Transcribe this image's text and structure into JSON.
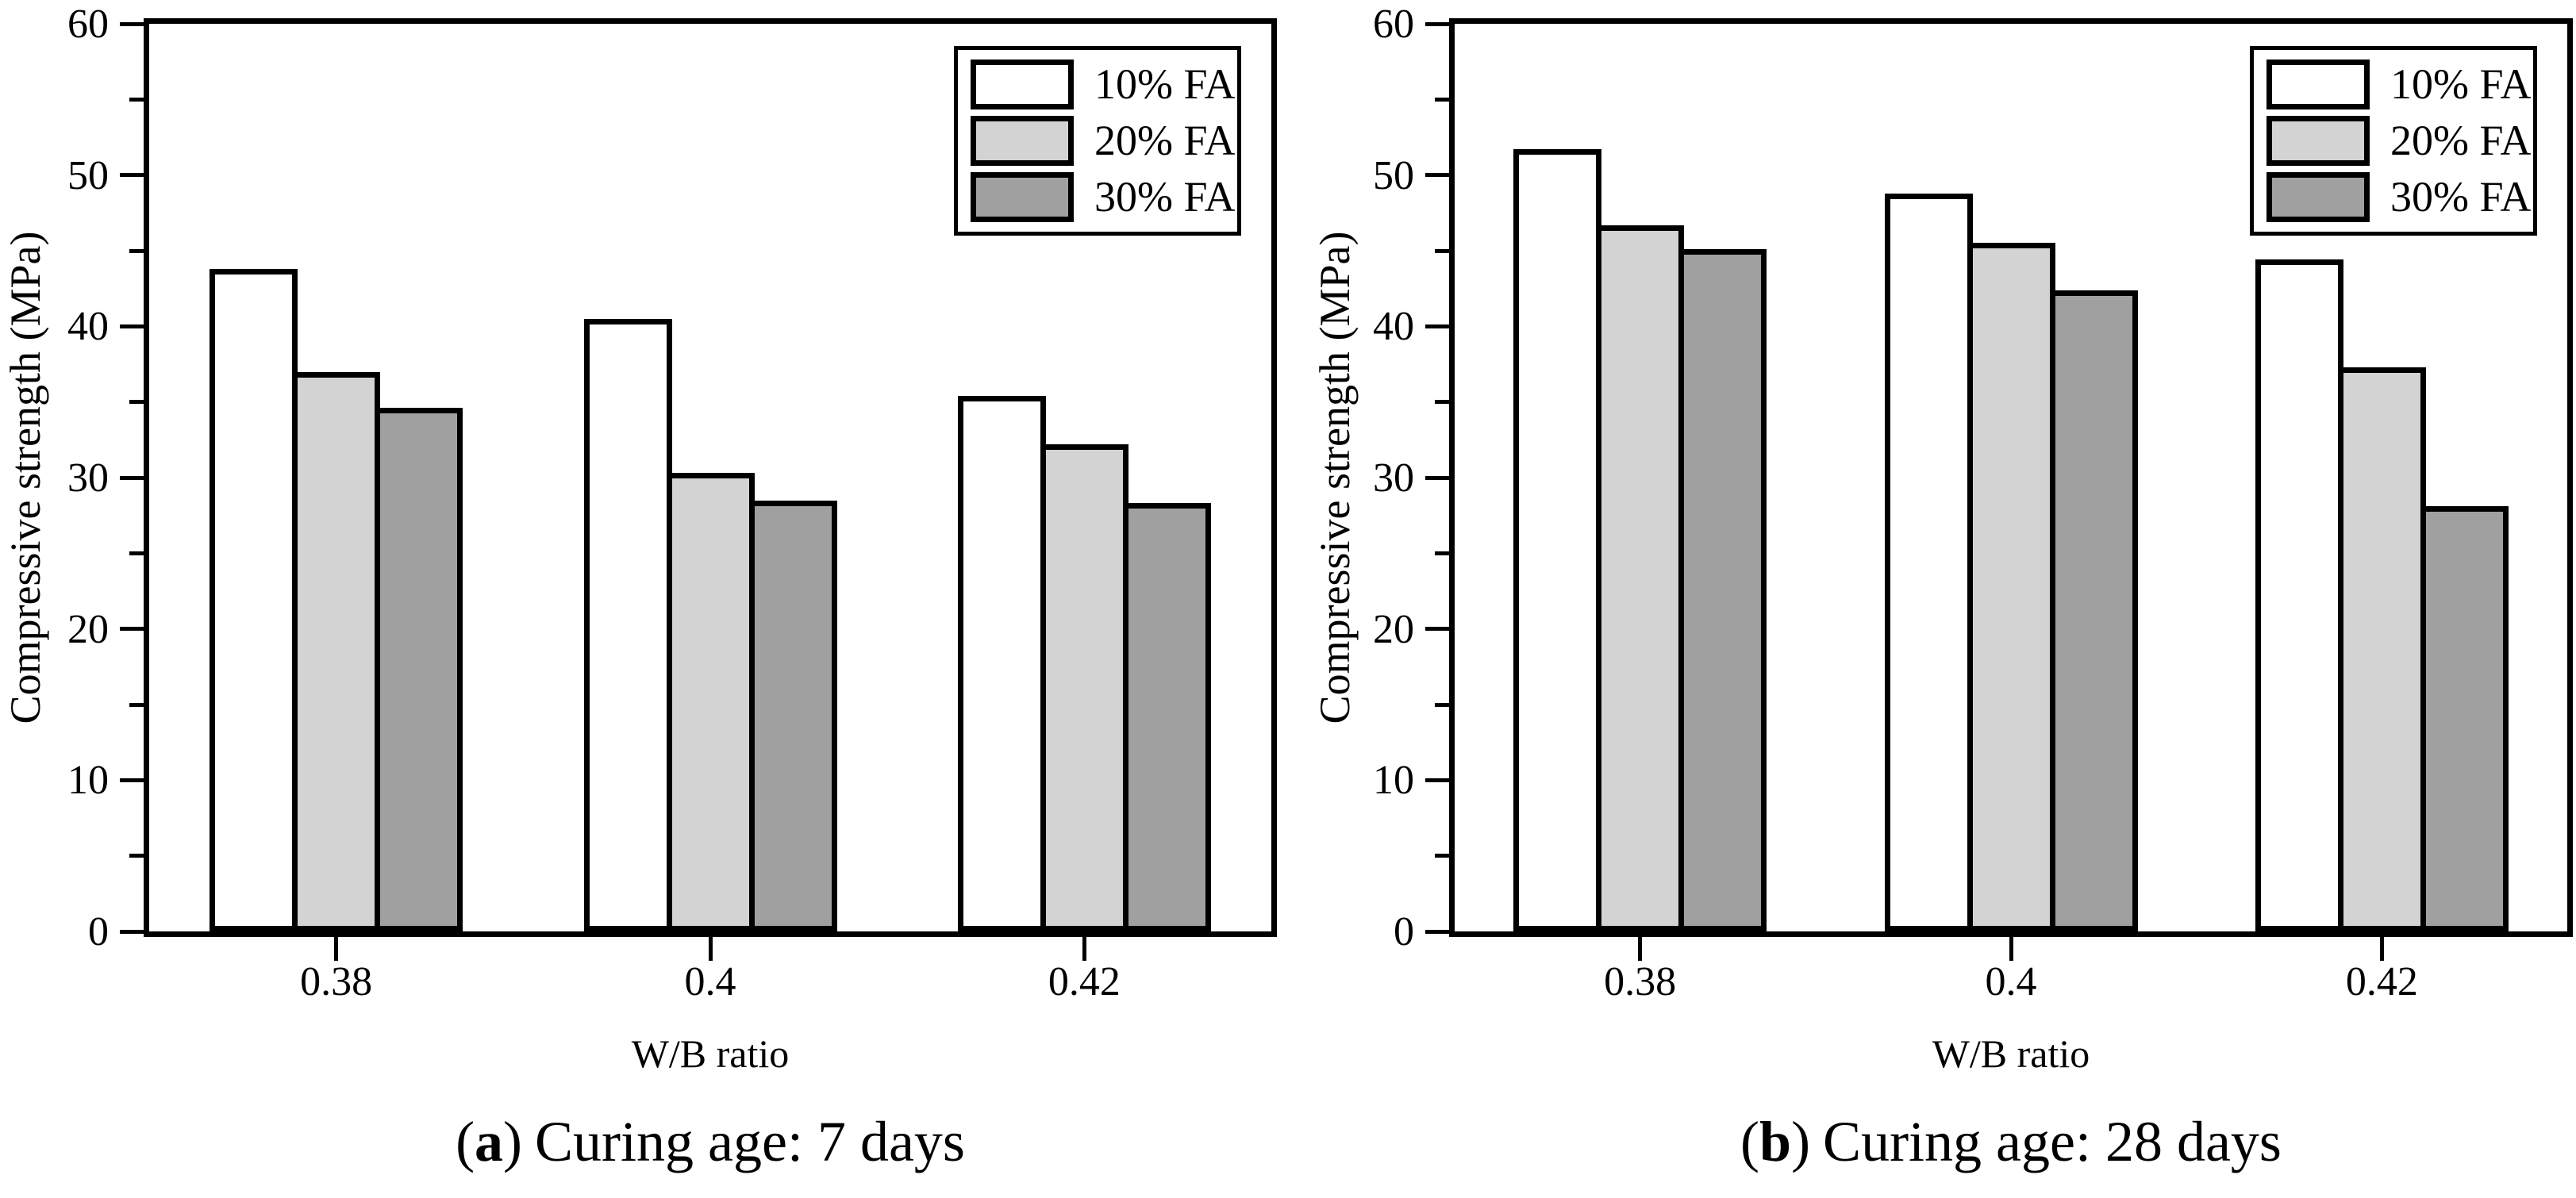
{
  "figure_background": "#ffffff",
  "chart_data": [
    {
      "type": "bar",
      "panel": "a",
      "caption_open": "(",
      "caption_letter": "a",
      "caption_close": ")",
      "caption_text": "Curing age: 7 days",
      "categories": [
        "0.38",
        "0.4",
        "0.42"
      ],
      "series": [
        {
          "name": "10% FA",
          "color": "#ffffff",
          "values": [
            43.8,
            40.5,
            35.4
          ]
        },
        {
          "name": "20% FA",
          "color": "#d3d3d3",
          "values": [
            37.0,
            30.3,
            32.2
          ]
        },
        {
          "name": "30% FA",
          "color": "#a0a0a0",
          "values": [
            34.6,
            28.5,
            28.3
          ]
        }
      ],
      "xlabel": "W/B ratio",
      "ylabel": "Compressive strength (MPa)",
      "ylim": [
        0,
        60
      ],
      "yticks": [
        0,
        10,
        20,
        30,
        40,
        50,
        60
      ],
      "minor_tick_step": 5,
      "grid": "off",
      "legend_position": "top-right",
      "bar_edge_color": "#000000"
    },
    {
      "type": "bar",
      "panel": "b",
      "caption_open": "(",
      "caption_letter": "b",
      "caption_close": ")",
      "caption_text": "Curing age: 28 days",
      "categories": [
        "0.38",
        "0.4",
        "0.42"
      ],
      "series": [
        {
          "name": "10% FA",
          "color": "#ffffff",
          "values": [
            51.7,
            48.8,
            44.4
          ]
        },
        {
          "name": "20% FA",
          "color": "#d3d3d3",
          "values": [
            46.7,
            45.5,
            37.3
          ]
        },
        {
          "name": "30% FA",
          "color": "#a0a0a0",
          "values": [
            45.1,
            42.4,
            28.1
          ]
        }
      ],
      "xlabel": "W/B ratio",
      "ylabel": "Compressive strength (MPa)",
      "ylim": [
        0,
        60
      ],
      "yticks": [
        0,
        10,
        20,
        30,
        40,
        50,
        60
      ],
      "minor_tick_step": 5,
      "grid": "off",
      "legend_position": "top-right",
      "bar_edge_color": "#000000"
    }
  ]
}
